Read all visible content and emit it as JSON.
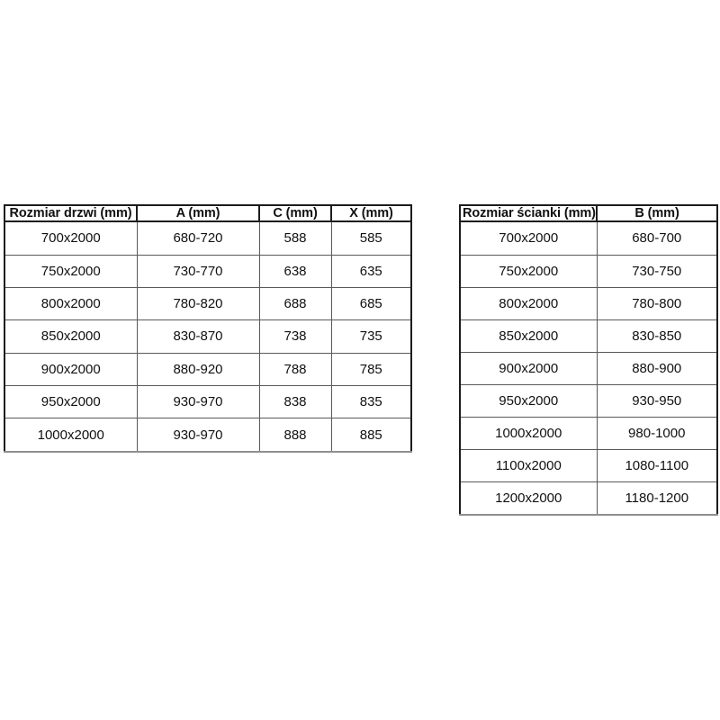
{
  "left_table": {
    "name": "door-size-table",
    "columns": [
      "Rozmiar drzwi (mm)",
      "A (mm)",
      "C (mm)",
      "X (mm)"
    ],
    "rows": [
      [
        "700x2000",
        "680-720",
        "588",
        "585"
      ],
      [
        "750x2000",
        "730-770",
        "638",
        "635"
      ],
      [
        "800x2000",
        "780-820",
        "688",
        "685"
      ],
      [
        "850x2000",
        "830-870",
        "738",
        "735"
      ],
      [
        "900x2000",
        "880-920",
        "788",
        "785"
      ],
      [
        "950x2000",
        "930-970",
        "838",
        "835"
      ],
      [
        "1000x2000",
        "930-970",
        "888",
        "885"
      ]
    ]
  },
  "right_table": {
    "name": "wall-panel-size-table",
    "columns": [
      "Rozmiar ścianki (mm)",
      "B (mm)"
    ],
    "rows": [
      [
        "700x2000",
        "680-700"
      ],
      [
        "750x2000",
        "730-750"
      ],
      [
        "800x2000",
        "780-800"
      ],
      [
        "850x2000",
        "830-850"
      ],
      [
        "900x2000",
        "880-900"
      ],
      [
        "950x2000",
        "930-950"
      ],
      [
        "1000x2000",
        "980-1000"
      ],
      [
        "1100x2000",
        "1080-1100"
      ],
      [
        "1200x2000",
        "1180-1200"
      ]
    ]
  },
  "colors": {
    "border_outer": "#1c1c1c",
    "border_inner": "#595959",
    "border_bottom_edge": "#8f8f8f",
    "text": "#111111",
    "background": "#ffffff"
  }
}
